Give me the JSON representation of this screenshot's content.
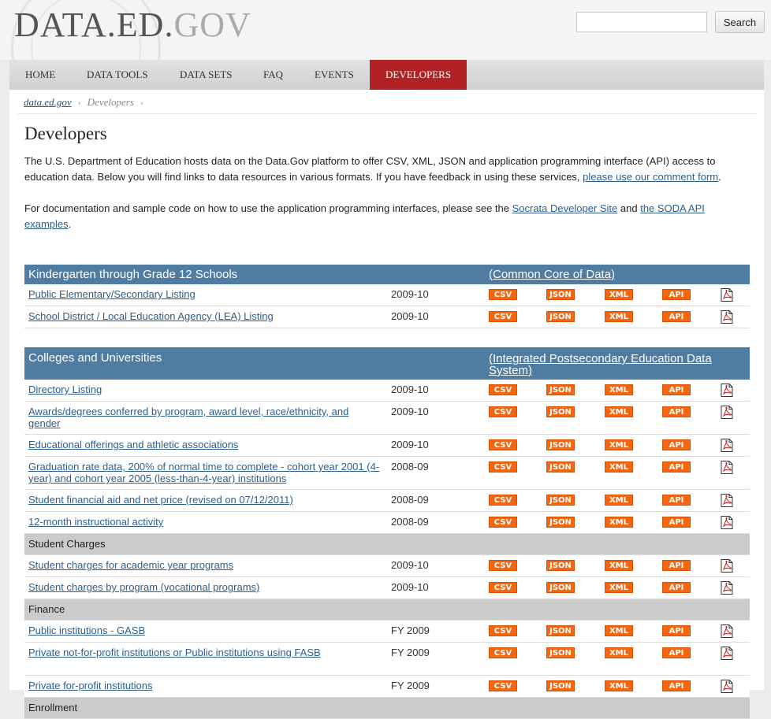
{
  "header": {
    "logo_part1": "DATA.ED.",
    "logo_part2": "GOV",
    "search_placeholder": "",
    "search_button": "Search"
  },
  "nav": {
    "items": [
      "HOME",
      "DATA TOOLS",
      "DATA SETS",
      "FAQ",
      "EVENTS",
      "DEVELOPERS"
    ],
    "active": "DEVELOPERS"
  },
  "breadcrumb": {
    "home": "data.ed.gov",
    "current": "Developers"
  },
  "page": {
    "title": "Developers",
    "intro_text": "The U.S. Department of Education hosts data on the Data.Gov platform to offer CSV, XML, JSON and application programming interface (API) access to education data. Below you will find links to data resources in various formats. If you have feedback in using these services, ",
    "intro_link": "please use our comment form",
    "intro_end": ".",
    "doc_text": "For documentation and sample code on how to use the application programming interfaces, please see the ",
    "doc_link1": "Socrata Developer Site",
    "doc_and": " and ",
    "doc_link2": "the SODA API examples",
    "doc_end": "."
  },
  "formats": {
    "csv": "CSV",
    "json": "JSON",
    "xml": "XML",
    "api": "API"
  },
  "colors": {
    "nav_active": "#b22225",
    "section_header": "#517ca1",
    "badge": "#f5670f",
    "link": "#2f5e8a"
  },
  "k12": {
    "title": "Kindergarten through Grade 12 Schools",
    "source": "(Common Core of Data)",
    "rows": [
      {
        "name": "Public Elementary/Secondary Listing",
        "year": "2009-10"
      },
      {
        "name": "School District / Local Education Agency (LEA) Listing",
        "year": "2009-10"
      }
    ]
  },
  "colleges": {
    "title": "Colleges and Universities",
    "source": "(Integrated Postsecondary Education Data System)",
    "rows": [
      {
        "name": "Directory Listing",
        "year": "2009-10"
      },
      {
        "name": "Awards/degrees conferred by program, award level, race/ethnicity, and gender",
        "year": "2009-10"
      },
      {
        "name": "Educational offerings and athletic associations",
        "year": "2009-10"
      },
      {
        "name": "Graduation rate data, 200% of normal time to complete - cohort year 2001 (4-year) and cohort year 2005 (less-than-4-year) institutions",
        "year": "2008-09"
      },
      {
        "name": "Student financial aid and net price (revised on 07/12/2011)",
        "year": "2008-09"
      },
      {
        "name": "12-month instructional activity",
        "year": "2008-09"
      }
    ],
    "student_charges": {
      "title": "Student Charges",
      "rows": [
        {
          "name": "Student charges for academic year programs",
          "year": "2009-10"
        },
        {
          "name": "Student charges by program (vocational programs)",
          "year": "2009-10"
        }
      ]
    },
    "finance": {
      "title": "Finance",
      "rows": [
        {
          "name": "Public institutions - GASB",
          "year": "FY 2009"
        },
        {
          "name": "Private not-for-profit institutions or Public institutions using FASB",
          "year": "FY 2009"
        },
        {
          "name": "Private for-profit institutions",
          "year": "FY 2009"
        }
      ]
    },
    "enrollment": {
      "title": "Enrollment"
    }
  }
}
